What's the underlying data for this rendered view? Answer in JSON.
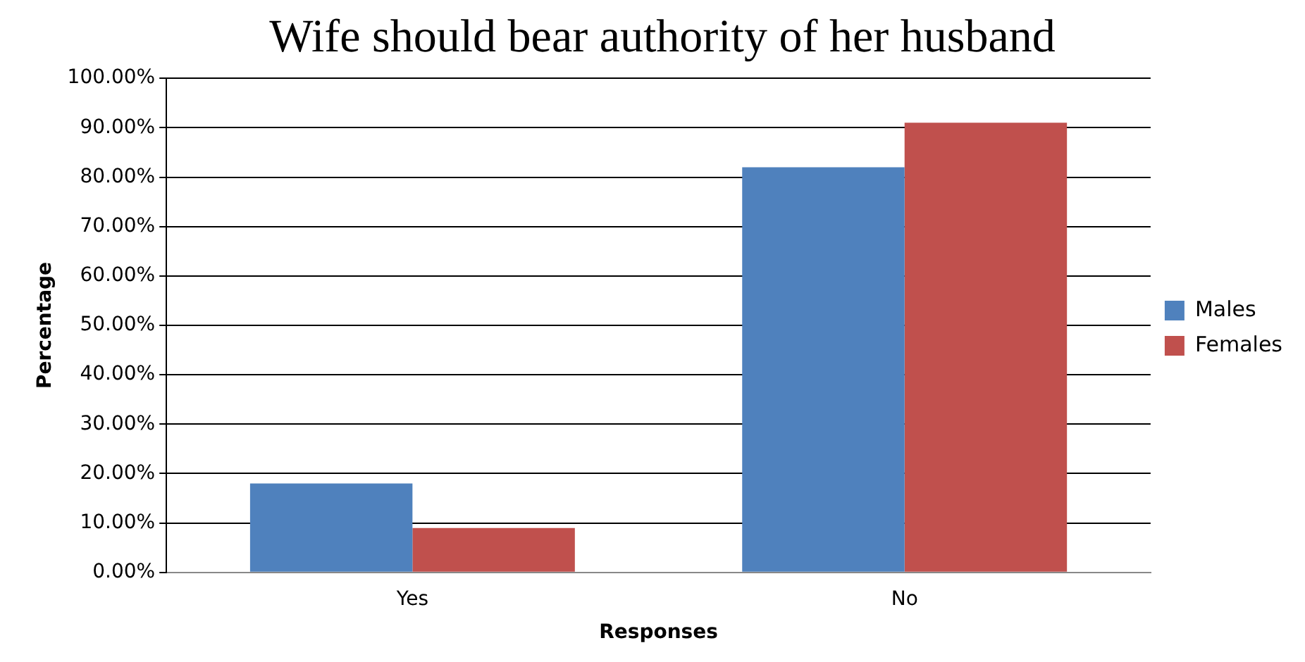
{
  "chart_data": {
    "type": "bar",
    "title": "Wife should bear authority of her husband",
    "xlabel": "Responses",
    "ylabel": "Percentage",
    "categories": [
      "Yes",
      "No"
    ],
    "series": [
      {
        "name": "Males",
        "color": "#4f81bd",
        "values": [
          18,
          82
        ]
      },
      {
        "name": "Females",
        "color": "#c0504d",
        "values": [
          9,
          91
        ]
      }
    ],
    "ylim": [
      0,
      100
    ],
    "yticks": [
      {
        "value": 0,
        "label": "0.00%"
      },
      {
        "value": 10,
        "label": "10.00%"
      },
      {
        "value": 20,
        "label": "20.00%"
      },
      {
        "value": 30,
        "label": "30.00%"
      },
      {
        "value": 40,
        "label": "40.00%"
      },
      {
        "value": 50,
        "label": "50.00%"
      },
      {
        "value": 60,
        "label": "60.00%"
      },
      {
        "value": 70,
        "label": "70.00%"
      },
      {
        "value": 80,
        "label": "80.00%"
      },
      {
        "value": 90,
        "label": "90.00%"
      },
      {
        "value": 100,
        "label": "100.00%"
      }
    ],
    "grid": "y",
    "legend": "right"
  }
}
